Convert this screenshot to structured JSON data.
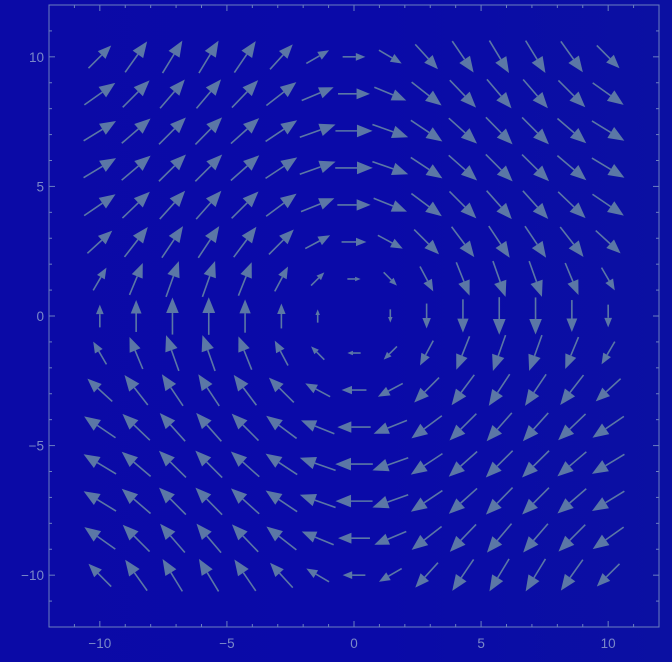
{
  "colors": {
    "background": "#0a0aa8",
    "frame": "#6b7fc0",
    "arrow": "#5b77a6",
    "tick_label": "#7a88c8"
  },
  "chart_data": {
    "type": "vector_field",
    "title": "",
    "xlabel": "",
    "ylabel": "",
    "xlim": [
      -12,
      12
    ],
    "ylim": [
      -12,
      12
    ],
    "grid": false,
    "x_ticks": [
      -10,
      -5,
      0,
      5,
      10
    ],
    "y_ticks": [
      -10,
      -5,
      0,
      5,
      10
    ],
    "x_tick_labels": [
      "−10",
      "−5",
      "0",
      "5",
      "10"
    ],
    "y_tick_labels": [
      "−10",
      "−5",
      "0",
      "5",
      "10"
    ],
    "field": {
      "formula": "(sin(y/4), -sin(x/4))",
      "grid_x_range": [
        -10,
        10
      ],
      "grid_y_range": [
        -10,
        10
      ],
      "grid_points": 15
    }
  }
}
